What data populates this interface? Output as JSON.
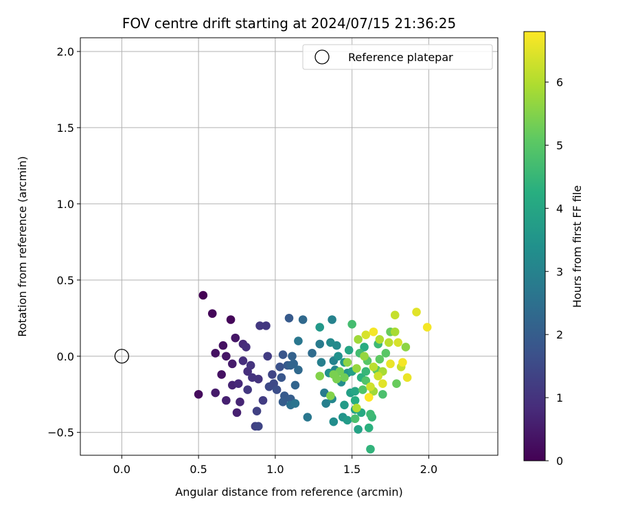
{
  "chart_data": {
    "type": "scatter",
    "title": "FOV centre drift starting at 2024/07/15 21:36:25",
    "xlabel": "Angular distance from reference (arcmin)",
    "ylabel": "Rotation from reference (arcmin)",
    "xlim": [
      -0.27,
      2.45
    ],
    "ylim": [
      -0.65,
      2.09
    ],
    "xticks": [
      0.0,
      0.5,
      1.0,
      1.5,
      2.0
    ],
    "xtick_labels": [
      "0.0",
      "0.5",
      "1.0",
      "1.5",
      "2.0"
    ],
    "yticks": [
      -0.5,
      0.0,
      0.5,
      1.0,
      1.5,
      2.0
    ],
    "ytick_labels": [
      "−0.5",
      "0.0",
      "0.5",
      "1.0",
      "1.5",
      "2.0"
    ],
    "grid": true,
    "legend": {
      "position": "top-right",
      "entries": [
        "Reference platepar"
      ]
    },
    "reference_point": {
      "x": 0.0,
      "y": 0.0
    },
    "colormap": "viridis",
    "colorbar": {
      "label": "Hours from first FF file",
      "min": 0,
      "max": 6.8,
      "ticks": [
        0,
        1,
        2,
        3,
        4,
        5,
        6
      ],
      "tick_labels": [
        "0",
        "1",
        "2",
        "3",
        "4",
        "5",
        "6"
      ]
    },
    "points": [
      {
        "x": 0.53,
        "y": 0.4,
        "c": 0.0
      },
      {
        "x": 0.59,
        "y": 0.28,
        "c": 0.1
      },
      {
        "x": 0.71,
        "y": 0.24,
        "c": 0.1
      },
      {
        "x": 0.5,
        "y": -0.25,
        "c": 0.2
      },
      {
        "x": 0.61,
        "y": 0.02,
        "c": 0.3
      },
      {
        "x": 0.66,
        "y": 0.07,
        "c": 0.3
      },
      {
        "x": 0.65,
        "y": -0.12,
        "c": 0.3
      },
      {
        "x": 0.68,
        "y": 0.0,
        "c": 0.4
      },
      {
        "x": 0.74,
        "y": 0.12,
        "c": 0.4
      },
      {
        "x": 0.72,
        "y": -0.05,
        "c": 0.5
      },
      {
        "x": 0.61,
        "y": -0.24,
        "c": 0.5
      },
      {
        "x": 0.68,
        "y": -0.29,
        "c": 0.6
      },
      {
        "x": 0.75,
        "y": -0.37,
        "c": 0.6
      },
      {
        "x": 0.77,
        "y": -0.3,
        "c": 0.7
      },
      {
        "x": 0.72,
        "y": -0.19,
        "c": 0.7
      },
      {
        "x": 0.76,
        "y": -0.18,
        "c": 0.8
      },
      {
        "x": 0.79,
        "y": 0.08,
        "c": 0.8
      },
      {
        "x": 0.81,
        "y": 0.06,
        "c": 0.9
      },
      {
        "x": 0.79,
        "y": -0.03,
        "c": 0.9
      },
      {
        "x": 0.82,
        "y": -0.1,
        "c": 0.9
      },
      {
        "x": 0.84,
        "y": -0.06,
        "c": 1.0
      },
      {
        "x": 0.85,
        "y": -0.14,
        "c": 1.0
      },
      {
        "x": 0.89,
        "y": -0.15,
        "c": 1.0
      },
      {
        "x": 0.82,
        "y": -0.22,
        "c": 1.1
      },
      {
        "x": 0.9,
        "y": 0.2,
        "c": 1.1
      },
      {
        "x": 0.94,
        "y": 0.2,
        "c": 1.1
      },
      {
        "x": 0.95,
        "y": 0.0,
        "c": 1.2
      },
      {
        "x": 0.92,
        "y": -0.29,
        "c": 1.2
      },
      {
        "x": 0.88,
        "y": -0.36,
        "c": 1.3
      },
      {
        "x": 0.87,
        "y": -0.46,
        "c": 1.3
      },
      {
        "x": 0.89,
        "y": -0.46,
        "c": 1.4
      },
      {
        "x": 0.98,
        "y": -0.12,
        "c": 1.4
      },
      {
        "x": 0.96,
        "y": -0.2,
        "c": 1.5
      },
      {
        "x": 0.99,
        "y": -0.18,
        "c": 1.5
      },
      {
        "x": 1.01,
        "y": -0.22,
        "c": 1.6
      },
      {
        "x": 1.03,
        "y": -0.07,
        "c": 1.7
      },
      {
        "x": 1.05,
        "y": 0.01,
        "c": 1.8
      },
      {
        "x": 1.04,
        "y": -0.14,
        "c": 1.8
      },
      {
        "x": 1.06,
        "y": -0.26,
        "c": 1.9
      },
      {
        "x": 1.08,
        "y": -0.06,
        "c": 1.9
      },
      {
        "x": 1.09,
        "y": 0.25,
        "c": 1.9
      },
      {
        "x": 1.05,
        "y": -0.3,
        "c": 2.0
      },
      {
        "x": 1.1,
        "y": -0.28,
        "c": 2.0
      },
      {
        "x": 1.11,
        "y": 0.0,
        "c": 2.1
      },
      {
        "x": 1.1,
        "y": -0.06,
        "c": 2.1
      },
      {
        "x": 1.13,
        "y": -0.19,
        "c": 2.2
      },
      {
        "x": 1.12,
        "y": -0.05,
        "c": 2.2
      },
      {
        "x": 1.15,
        "y": -0.09,
        "c": 2.3
      },
      {
        "x": 1.18,
        "y": 0.24,
        "c": 2.3
      },
      {
        "x": 1.24,
        "y": 0.02,
        "c": 2.4
      },
      {
        "x": 1.1,
        "y": -0.32,
        "c": 2.5
      },
      {
        "x": 1.13,
        "y": -0.31,
        "c": 2.6
      },
      {
        "x": 1.15,
        "y": 0.1,
        "c": 2.7
      },
      {
        "x": 1.21,
        "y": -0.4,
        "c": 2.7
      },
      {
        "x": 1.29,
        "y": 0.08,
        "c": 2.8
      },
      {
        "x": 1.32,
        "y": -0.24,
        "c": 2.8
      },
      {
        "x": 1.33,
        "y": -0.31,
        "c": 2.9
      },
      {
        "x": 1.3,
        "y": -0.04,
        "c": 2.9
      },
      {
        "x": 1.37,
        "y": 0.24,
        "c": 3.0
      },
      {
        "x": 1.38,
        "y": -0.03,
        "c": 3.0
      },
      {
        "x": 1.39,
        "y": -0.09,
        "c": 3.1
      },
      {
        "x": 1.37,
        "y": -0.28,
        "c": 3.1
      },
      {
        "x": 1.4,
        "y": 0.07,
        "c": 3.2
      },
      {
        "x": 1.36,
        "y": 0.09,
        "c": 3.2
      },
      {
        "x": 1.43,
        "y": -0.17,
        "c": 3.3
      },
      {
        "x": 1.38,
        "y": -0.43,
        "c": 3.3
      },
      {
        "x": 1.35,
        "y": -0.11,
        "c": 3.4
      },
      {
        "x": 1.41,
        "y": 0.0,
        "c": 3.4
      },
      {
        "x": 1.44,
        "y": -0.4,
        "c": 3.5
      },
      {
        "x": 1.47,
        "y": -0.11,
        "c": 3.5
      },
      {
        "x": 1.29,
        "y": 0.19,
        "c": 3.6
      },
      {
        "x": 1.45,
        "y": -0.04,
        "c": 3.6
      },
      {
        "x": 1.47,
        "y": -0.42,
        "c": 3.7
      },
      {
        "x": 1.45,
        "y": -0.32,
        "c": 3.7
      },
      {
        "x": 1.49,
        "y": -0.24,
        "c": 3.8
      },
      {
        "x": 1.5,
        "y": -0.1,
        "c": 3.8
      },
      {
        "x": 1.52,
        "y": -0.35,
        "c": 3.9
      },
      {
        "x": 1.54,
        "y": -0.48,
        "c": 3.9
      },
      {
        "x": 1.52,
        "y": -0.23,
        "c": 4.0
      },
      {
        "x": 1.48,
        "y": 0.04,
        "c": 4.0
      },
      {
        "x": 1.56,
        "y": -0.37,
        "c": 4.1
      },
      {
        "x": 1.58,
        "y": 0.06,
        "c": 4.2
      },
      {
        "x": 1.52,
        "y": -0.29,
        "c": 4.2
      },
      {
        "x": 1.56,
        "y": -0.14,
        "c": 4.3
      },
      {
        "x": 1.61,
        "y": -0.47,
        "c": 4.3
      },
      {
        "x": 1.62,
        "y": -0.61,
        "c": 4.4
      },
      {
        "x": 1.59,
        "y": -0.1,
        "c": 4.5
      },
      {
        "x": 1.63,
        "y": -0.4,
        "c": 4.5
      },
      {
        "x": 1.62,
        "y": -0.38,
        "c": 4.6
      },
      {
        "x": 1.67,
        "y": 0.08,
        "c": 4.6
      },
      {
        "x": 1.5,
        "y": 0.21,
        "c": 4.7
      },
      {
        "x": 1.55,
        "y": 0.02,
        "c": 4.7
      },
      {
        "x": 1.7,
        "y": -0.25,
        "c": 4.8
      },
      {
        "x": 1.52,
        "y": -0.41,
        "c": 4.8
      },
      {
        "x": 1.57,
        "y": -0.22,
        "c": 4.9
      },
      {
        "x": 1.59,
        "y": -0.16,
        "c": 4.9
      },
      {
        "x": 1.72,
        "y": 0.02,
        "c": 5.0
      },
      {
        "x": 1.6,
        "y": -0.03,
        "c": 5.0
      },
      {
        "x": 1.66,
        "y": -0.09,
        "c": 5.1
      },
      {
        "x": 1.68,
        "y": -0.02,
        "c": 5.1
      },
      {
        "x": 1.75,
        "y": 0.16,
        "c": 5.2
      },
      {
        "x": 1.79,
        "y": -0.18,
        "c": 5.2
      },
      {
        "x": 1.45,
        "y": -0.14,
        "c": 5.3
      },
      {
        "x": 1.42,
        "y": -0.1,
        "c": 5.3
      },
      {
        "x": 1.38,
        "y": -0.12,
        "c": 5.4
      },
      {
        "x": 1.4,
        "y": -0.15,
        "c": 5.4
      },
      {
        "x": 1.29,
        "y": -0.13,
        "c": 5.5
      },
      {
        "x": 1.36,
        "y": -0.26,
        "c": 5.5
      },
      {
        "x": 1.85,
        "y": 0.06,
        "c": 5.6
      },
      {
        "x": 1.47,
        "y": -0.04,
        "c": 5.6
      },
      {
        "x": 1.53,
        "y": -0.08,
        "c": 5.7
      },
      {
        "x": 1.58,
        "y": 0.0,
        "c": 5.7
      },
      {
        "x": 1.54,
        "y": 0.11,
        "c": 5.8
      },
      {
        "x": 1.64,
        "y": -0.23,
        "c": 5.8
      },
      {
        "x": 1.78,
        "y": 0.16,
        "c": 5.9
      },
      {
        "x": 1.7,
        "y": -0.1,
        "c": 5.9
      },
      {
        "x": 1.53,
        "y": -0.34,
        "c": 6.0
      },
      {
        "x": 1.68,
        "y": 0.11,
        "c": 6.0
      },
      {
        "x": 1.74,
        "y": 0.09,
        "c": 6.1
      },
      {
        "x": 1.64,
        "y": -0.07,
        "c": 6.1
      },
      {
        "x": 1.78,
        "y": 0.27,
        "c": 6.2
      },
      {
        "x": 1.82,
        "y": -0.07,
        "c": 6.2
      },
      {
        "x": 1.67,
        "y": -0.13,
        "c": 6.3
      },
      {
        "x": 1.62,
        "y": -0.2,
        "c": 6.3
      },
      {
        "x": 1.59,
        "y": 0.14,
        "c": 6.4
      },
      {
        "x": 1.8,
        "y": 0.09,
        "c": 6.4
      },
      {
        "x": 1.92,
        "y": 0.29,
        "c": 6.5
      },
      {
        "x": 1.7,
        "y": -0.18,
        "c": 6.5
      },
      {
        "x": 1.75,
        "y": -0.05,
        "c": 6.6
      },
      {
        "x": 1.86,
        "y": -0.14,
        "c": 6.6
      },
      {
        "x": 1.64,
        "y": 0.16,
        "c": 6.7
      },
      {
        "x": 1.99,
        "y": 0.19,
        "c": 6.7
      },
      {
        "x": 1.83,
        "y": -0.04,
        "c": 6.7
      },
      {
        "x": 1.61,
        "y": -0.27,
        "c": 6.8
      }
    ]
  }
}
